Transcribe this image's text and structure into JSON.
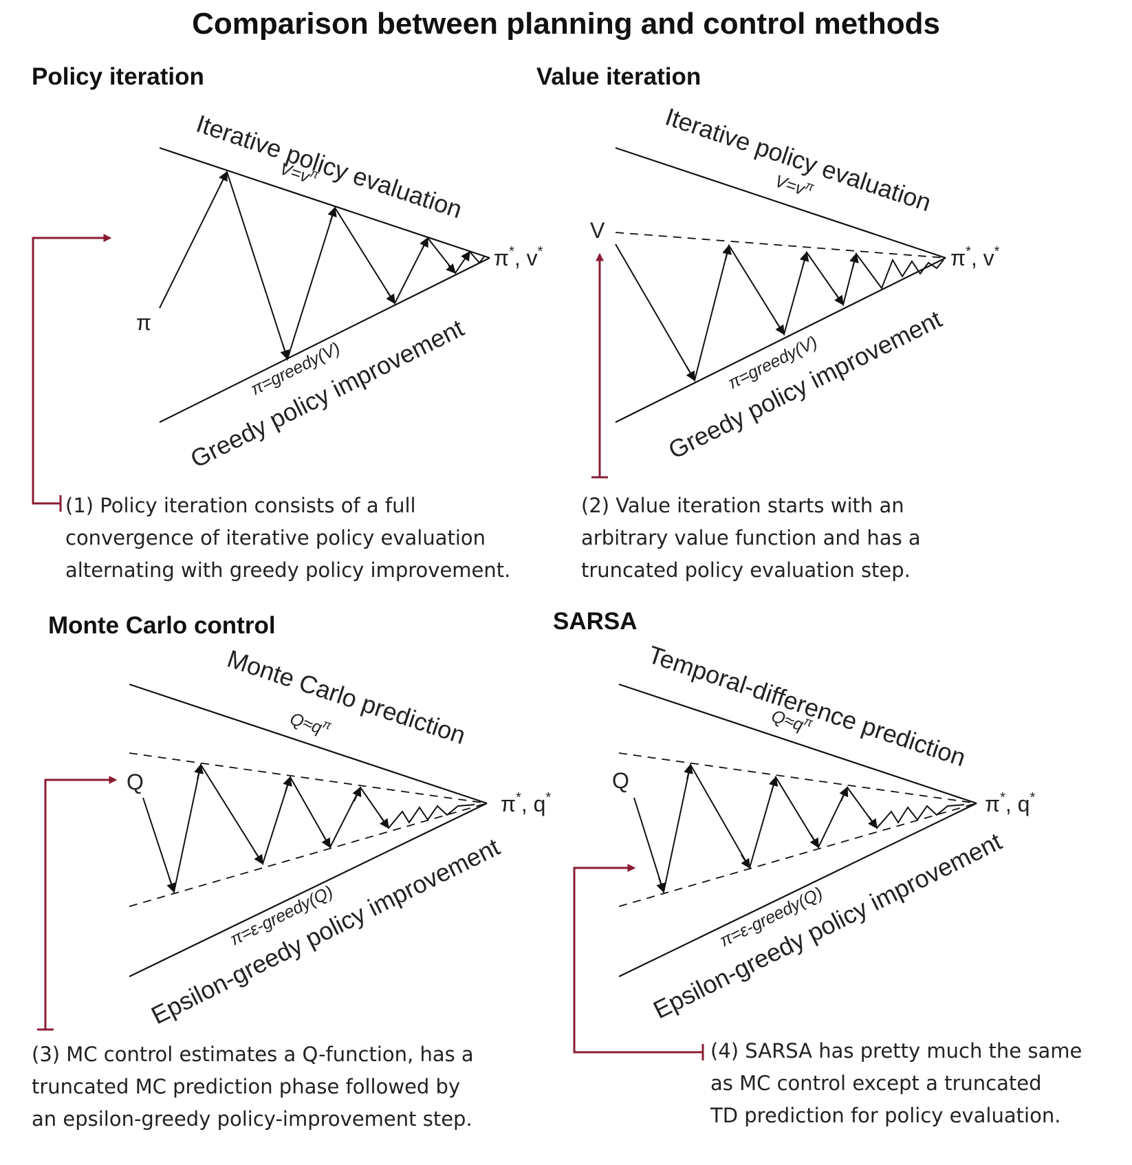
{
  "title": "Comparison between planning and control methods",
  "colors": {
    "accent": "#8a1c32",
    "line": "#111111"
  },
  "panels": {
    "policy_iteration": {
      "title": "Policy iteration",
      "top_label": "Iterative policy evaluation",
      "top_formula": "V=v",
      "top_formula_sup": "π",
      "bottom_label": "Greedy policy improvement",
      "bottom_formula": "π=greedy(V)",
      "start_label": "π",
      "apex_label": "π",
      "apex_sup1": "*",
      "apex_mid": ", v",
      "apex_sup2": "*",
      "caption": [
        "(1) Policy iteration consists of a full",
        "convergence of iterative policy evaluation",
        "alternating with greedy policy improvement."
      ]
    },
    "value_iteration": {
      "title": "Value iteration",
      "top_label": "Iterative policy evaluation",
      "top_formula": "V=v",
      "top_formula_sup": "π",
      "bottom_label": "Greedy policy improvement",
      "bottom_formula": "π=greedy(V)",
      "start_label": "V",
      "apex_label": "π",
      "apex_sup1": "*",
      "apex_mid": ", v",
      "apex_sup2": "*",
      "caption": [
        "(2) Value iteration starts with an",
        "arbitrary value function and has a",
        "truncated policy evaluation step."
      ]
    },
    "monte_carlo": {
      "title": "Monte Carlo control",
      "top_label": "Monte Carlo prediction",
      "top_formula": "Q≈q",
      "top_formula_sup": "π",
      "bottom_label": "Epsilon-greedy policy improvement",
      "bottom_formula": "π=ε-greedy(Q)",
      "start_label": "Q",
      "apex_label": "π",
      "apex_sup1": "*",
      "apex_mid": ", q",
      "apex_sup2": "*",
      "caption": [
        "(3) MC control estimates a Q-function, has a",
        "truncated MC prediction phase followed by",
        "an epsilon-greedy policy-improvement step."
      ]
    },
    "sarsa": {
      "title": "SARSA",
      "top_label": "Temporal-difference prediction",
      "top_formula": "Q≈q",
      "top_formula_sup": "π",
      "bottom_label": "Epsilon-greedy policy improvement",
      "bottom_formula": "π=ε-greedy(Q)",
      "start_label": "Q",
      "apex_label": "π",
      "apex_sup1": "*",
      "apex_mid": ", q",
      "apex_sup2": "*",
      "caption": [
        "(4) SARSA has pretty much the same",
        "as MC control except a truncated",
        "TD prediction for policy evaluation."
      ]
    }
  }
}
